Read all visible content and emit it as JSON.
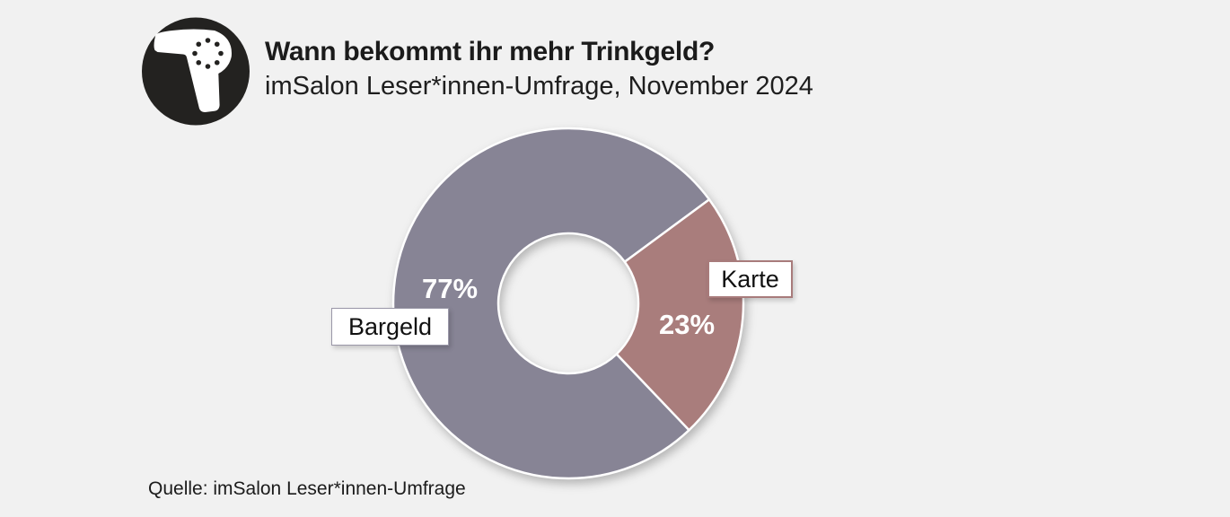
{
  "page": {
    "background": "#f1f1f1"
  },
  "header": {
    "title": "Wann bekommt ihr mehr Trinkgeld?",
    "subtitle": "imSalon Leser*innen-Umfrage, November 2024",
    "logo": "imsalon-hairdryer-logo"
  },
  "source": {
    "text": "Quelle: imSalon Leser*innen-Umfrage"
  },
  "chart_data": {
    "type": "pie",
    "subtype": "donut",
    "title": "Wann bekommt ihr mehr Trinkgeld?",
    "subtitle": "imSalon Leser*innen-Umfrage, November 2024",
    "source": "Quelle: imSalon Leser*innen-Umfrage",
    "categories": [
      "Bargeld",
      "Karte"
    ],
    "values": [
      77,
      23
    ],
    "unit": "%",
    "series_colors": [
      "#878495",
      "#a97d7c"
    ],
    "labels": {
      "bargeld_pct": "77%",
      "karte_pct": "23%"
    },
    "label_box_border_colors": [
      "#9a97a8",
      "#a87b7b"
    ],
    "first_slice_start_angle_deg": 136.4,
    "donut_hole_ratio": 0.4,
    "legend": "none",
    "background": "#f1f1f1",
    "slice_separator_color": "#ffffff"
  }
}
